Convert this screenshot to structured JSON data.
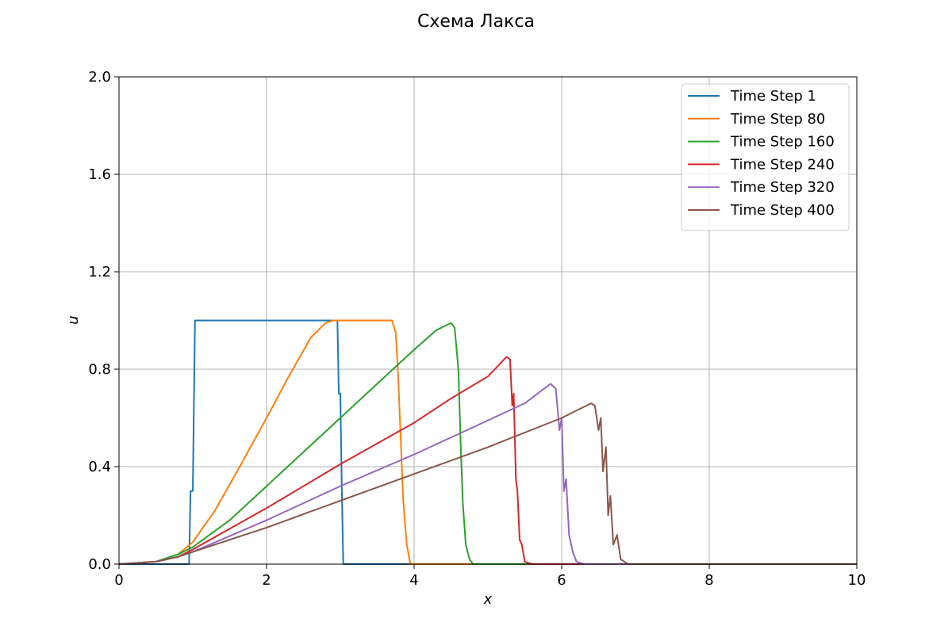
{
  "chart_data": {
    "type": "line",
    "title": "Схема Лакса",
    "xlabel": "x",
    "ylabel": "u",
    "xlim": [
      0,
      10
    ],
    "ylim": [
      0,
      2.0
    ],
    "xticks": [
      "0",
      "2",
      "4",
      "6",
      "8",
      "10"
    ],
    "xtick_values": [
      0,
      2,
      4,
      6,
      8,
      10
    ],
    "yticks": [
      "0.0",
      "0.4",
      "0.8",
      "1.2",
      "1.6",
      "2.0"
    ],
    "ytick_values": [
      0,
      0.4,
      0.8,
      1.2,
      1.6,
      2.0
    ],
    "grid": true,
    "legend_position": "top-right",
    "series": [
      {
        "name": "Time Step 1",
        "color": "#1f77b4",
        "x": [
          0,
          0.95,
          0.97,
          1.0,
          1.03,
          1.05,
          2.9,
          2.96,
          2.98,
          3.0,
          3.02,
          3.04,
          10
        ],
        "y": [
          0,
          0,
          0.3,
          0.3,
          1.0,
          1.0,
          1.0,
          1.0,
          0.7,
          0.7,
          0.3,
          0,
          0
        ]
      },
      {
        "name": "Time Step 80",
        "color": "#ff7f0e",
        "x": [
          0,
          0.5,
          0.8,
          1.0,
          1.3,
          1.6,
          2.0,
          2.3,
          2.6,
          2.8,
          2.9,
          3.0,
          3.5,
          3.7,
          3.75,
          3.78,
          3.82,
          3.85,
          3.9,
          3.95,
          10
        ],
        "y": [
          0,
          0.01,
          0.04,
          0.09,
          0.22,
          0.38,
          0.6,
          0.77,
          0.93,
          0.99,
          1.0,
          1.0,
          1.0,
          1.0,
          0.95,
          0.8,
          0.5,
          0.27,
          0.08,
          0,
          0
        ]
      },
      {
        "name": "Time Step 160",
        "color": "#2ca02c",
        "x": [
          0,
          0.5,
          0.8,
          1.0,
          1.5,
          2.0,
          2.5,
          3.0,
          3.5,
          4.0,
          4.3,
          4.5,
          4.55,
          4.6,
          4.63,
          4.66,
          4.7,
          4.75,
          4.8,
          10
        ],
        "y": [
          0,
          0.01,
          0.04,
          0.07,
          0.18,
          0.32,
          0.46,
          0.6,
          0.74,
          0.88,
          0.96,
          0.99,
          0.97,
          0.8,
          0.5,
          0.25,
          0.08,
          0.02,
          0,
          0
        ]
      },
      {
        "name": "Time Step 240",
        "color": "#d62728",
        "x": [
          0,
          0.5,
          0.8,
          1.0,
          2.0,
          3.0,
          4.0,
          4.5,
          5.0,
          5.25,
          5.3,
          5.33,
          5.35,
          5.38,
          5.4,
          5.43,
          5.46,
          5.5,
          5.6,
          10
        ],
        "y": [
          0,
          0.01,
          0.03,
          0.06,
          0.23,
          0.41,
          0.58,
          0.68,
          0.77,
          0.85,
          0.84,
          0.65,
          0.7,
          0.35,
          0.3,
          0.1,
          0.08,
          0.01,
          0,
          0
        ]
      },
      {
        "name": "Time Step 320",
        "color": "#9467bd",
        "x": [
          0,
          0.5,
          0.8,
          1.0,
          2.0,
          3.0,
          4.0,
          5.0,
          5.5,
          5.85,
          5.92,
          5.97,
          6.0,
          6.03,
          6.06,
          6.1,
          6.15,
          6.2,
          6.3,
          10
        ],
        "y": [
          0,
          0.01,
          0.03,
          0.05,
          0.18,
          0.32,
          0.45,
          0.59,
          0.66,
          0.74,
          0.72,
          0.55,
          0.6,
          0.3,
          0.35,
          0.12,
          0.05,
          0.01,
          0,
          0
        ]
      },
      {
        "name": "Time Step 400",
        "color": "#8c564b",
        "x": [
          0,
          0.5,
          0.8,
          1.0,
          2.0,
          3.0,
          4.0,
          5.0,
          6.0,
          6.4,
          6.45,
          6.5,
          6.53,
          6.56,
          6.6,
          6.63,
          6.66,
          6.7,
          6.75,
          6.8,
          6.9,
          10
        ],
        "y": [
          0,
          0.01,
          0.03,
          0.05,
          0.15,
          0.26,
          0.37,
          0.48,
          0.6,
          0.66,
          0.65,
          0.55,
          0.6,
          0.38,
          0.48,
          0.2,
          0.28,
          0.08,
          0.12,
          0.02,
          0,
          0
        ]
      }
    ]
  }
}
